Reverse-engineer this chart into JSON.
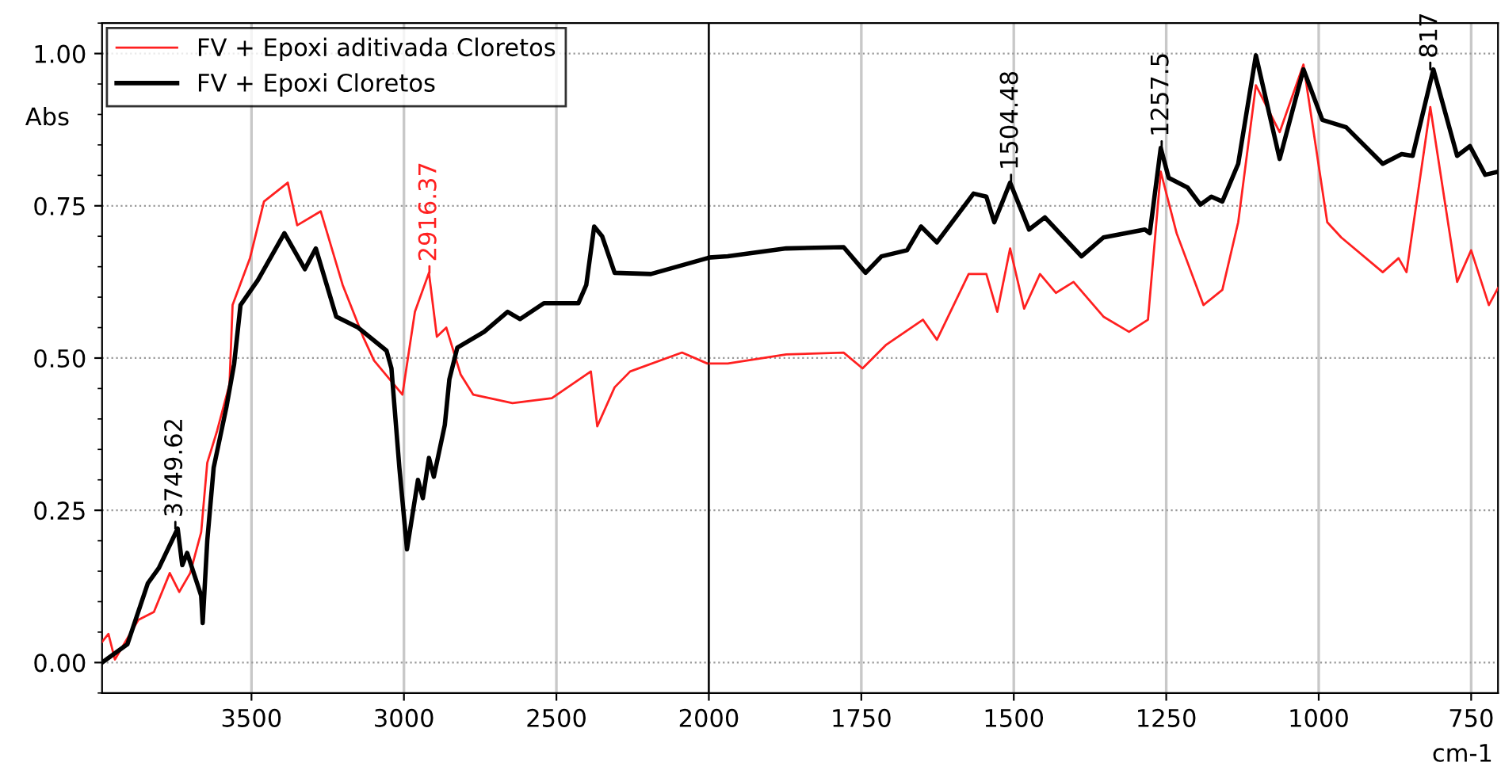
{
  "chart_data": [
    {
      "type": "line",
      "ylabel": "Abs",
      "xlim": [
        3990,
        2000
      ],
      "xticks": [
        3500,
        3000,
        2500
      ],
      "ylim": [
        -0.05,
        1.05
      ],
      "yticks": [
        {
          "value": 0,
          "label": "0.00"
        },
        {
          "value": 0.25,
          "label": "0.25"
        },
        {
          "value": 0.5,
          "label": "0.50"
        },
        {
          "value": 0.75,
          "label": "0.75"
        },
        {
          "value": 1,
          "label": "1.00"
        }
      ],
      "grid": true,
      "legend": "top left",
      "line_style": "solid",
      "marker": "none",
      "series": [
        {
          "name": "FV + Epoxi aditivada Cloretos",
          "color": "#ff2020",
          "x": [
            3990,
            3969,
            3948,
            3871,
            3820,
            3768,
            3737,
            3701,
            3665,
            3645,
            3613,
            3572,
            3562,
            3505,
            3459,
            3381,
            3350,
            3273,
            3201,
            3134,
            3098,
            3005,
            2964,
            2918,
            2892,
            2861,
            2814,
            2773,
            2644,
            2515,
            2387,
            2366,
            2309,
            2258,
            2088,
            2005,
            2000
          ],
          "values": [
            0.034,
            0.047,
            0.005,
            0.07,
            0.083,
            0.147,
            0.116,
            0.147,
            0.214,
            0.328,
            0.38,
            0.457,
            0.587,
            0.664,
            0.757,
            0.788,
            0.718,
            0.741,
            0.62,
            0.535,
            0.496,
            0.44,
            0.576,
            0.64,
            0.535,
            0.55,
            0.473,
            0.44,
            0.426,
            0.434,
            0.478,
            0.388,
            0.452,
            0.478,
            0.509,
            0.491,
            0.491
          ]
        },
        {
          "name": "FV + Epoxi Cloretos",
          "color": "#000000",
          "x": [
            3990,
            3907,
            3840,
            3804,
            3742,
            3727,
            3711,
            3665,
            3660,
            3645,
            3624,
            3582,
            3557,
            3536,
            3479,
            3392,
            3325,
            3289,
            3222,
            3150,
            3057,
            3041,
            3015,
            2990,
            2954,
            2938,
            2918,
            2902,
            2866,
            2851,
            2825,
            2737,
            2660,
            2619,
            2541,
            2428,
            2402,
            2376,
            2350,
            2309,
            2190,
            2005,
            2000
          ],
          "values": [
            0.0,
            0.03,
            0.13,
            0.155,
            0.22,
            0.16,
            0.18,
            0.11,
            0.065,
            0.2,
            0.32,
            0.42,
            0.49,
            0.587,
            0.628,
            0.705,
            0.646,
            0.68,
            0.568,
            0.55,
            0.512,
            0.483,
            0.32,
            0.186,
            0.3,
            0.27,
            0.336,
            0.305,
            0.39,
            0.465,
            0.517,
            0.543,
            0.576,
            0.564,
            0.59,
            0.59,
            0.62,
            0.716,
            0.7,
            0.64,
            0.638,
            0.664,
            0.665
          ]
        }
      ],
      "annotations": [
        {
          "text": "3749.62",
          "x": 3749.62,
          "y": 0.22
        },
        {
          "text": "2916.37",
          "x": 2916.37,
          "y": 0.64
        }
      ]
    },
    {
      "type": "line",
      "xlabel": "cm-1",
      "xlim": [
        2000,
        706
      ],
      "xticks": [
        2000,
        1750,
        1500,
        1250,
        1000,
        750
      ],
      "ylim": [
        -0.05,
        1.05
      ],
      "yticks": [
        0,
        0.25,
        0.5,
        0.75,
        1
      ],
      "tick_labels": "x",
      "grid": true,
      "line_style": "solid",
      "marker": "none",
      "series": [
        {
          "color": "#ff2020",
          "x": [
            2000,
            1969,
            1873,
            1779,
            1748,
            1709,
            1649,
            1626,
            1574,
            1545,
            1527,
            1506,
            1483,
            1457,
            1431,
            1402,
            1353,
            1311,
            1280,
            1259,
            1233,
            1189,
            1158,
            1132,
            1103,
            1064,
            1025,
            986,
            963,
            895,
            869,
            856,
            817,
            773,
            750,
            721,
            706
          ],
          "values": [
            0.491,
            0.491,
            0.506,
            0.509,
            0.483,
            0.522,
            0.563,
            0.53,
            0.638,
            0.638,
            0.576,
            0.68,
            0.581,
            0.638,
            0.607,
            0.625,
            0.568,
            0.543,
            0.563,
            0.806,
            0.705,
            0.587,
            0.612,
            0.723,
            0.948,
            0.871,
            0.982,
            0.723,
            0.698,
            0.641,
            0.664,
            0.641,
            0.912,
            0.625,
            0.677,
            0.587,
            0.615
          ]
        },
        {
          "color": "#000000",
          "x": [
            2000,
            1969,
            1873,
            1779,
            1743,
            1717,
            1675,
            1652,
            1626,
            1566,
            1545,
            1532,
            1506,
            1475,
            1449,
            1389,
            1353,
            1285,
            1277,
            1259,
            1246,
            1215,
            1194,
            1176,
            1158,
            1132,
            1103,
            1064,
            1025,
            994,
            955,
            895,
            864,
            846,
            812,
            773,
            752,
            727,
            706
          ],
          "values": [
            0.665,
            0.667,
            0.68,
            0.682,
            0.64,
            0.667,
            0.677,
            0.716,
            0.69,
            0.77,
            0.765,
            0.723,
            0.788,
            0.711,
            0.731,
            0.667,
            0.698,
            0.711,
            0.705,
            0.845,
            0.796,
            0.78,
            0.752,
            0.765,
            0.757,
            0.819,
            0.997,
            0.827,
            0.974,
            0.891,
            0.879,
            0.819,
            0.835,
            0.832,
            0.974,
            0.832,
            0.848,
            0.801,
            0.806
          ]
        }
      ],
      "annotations": [
        {
          "text": "1504.48",
          "x": 1504.48,
          "y": 0.79
        },
        {
          "text": "1257.5",
          "x": 1257.5,
          "y": 0.845
        },
        {
          "text": "817",
          "x": 817,
          "y": 0.974
        }
      ]
    }
  ]
}
